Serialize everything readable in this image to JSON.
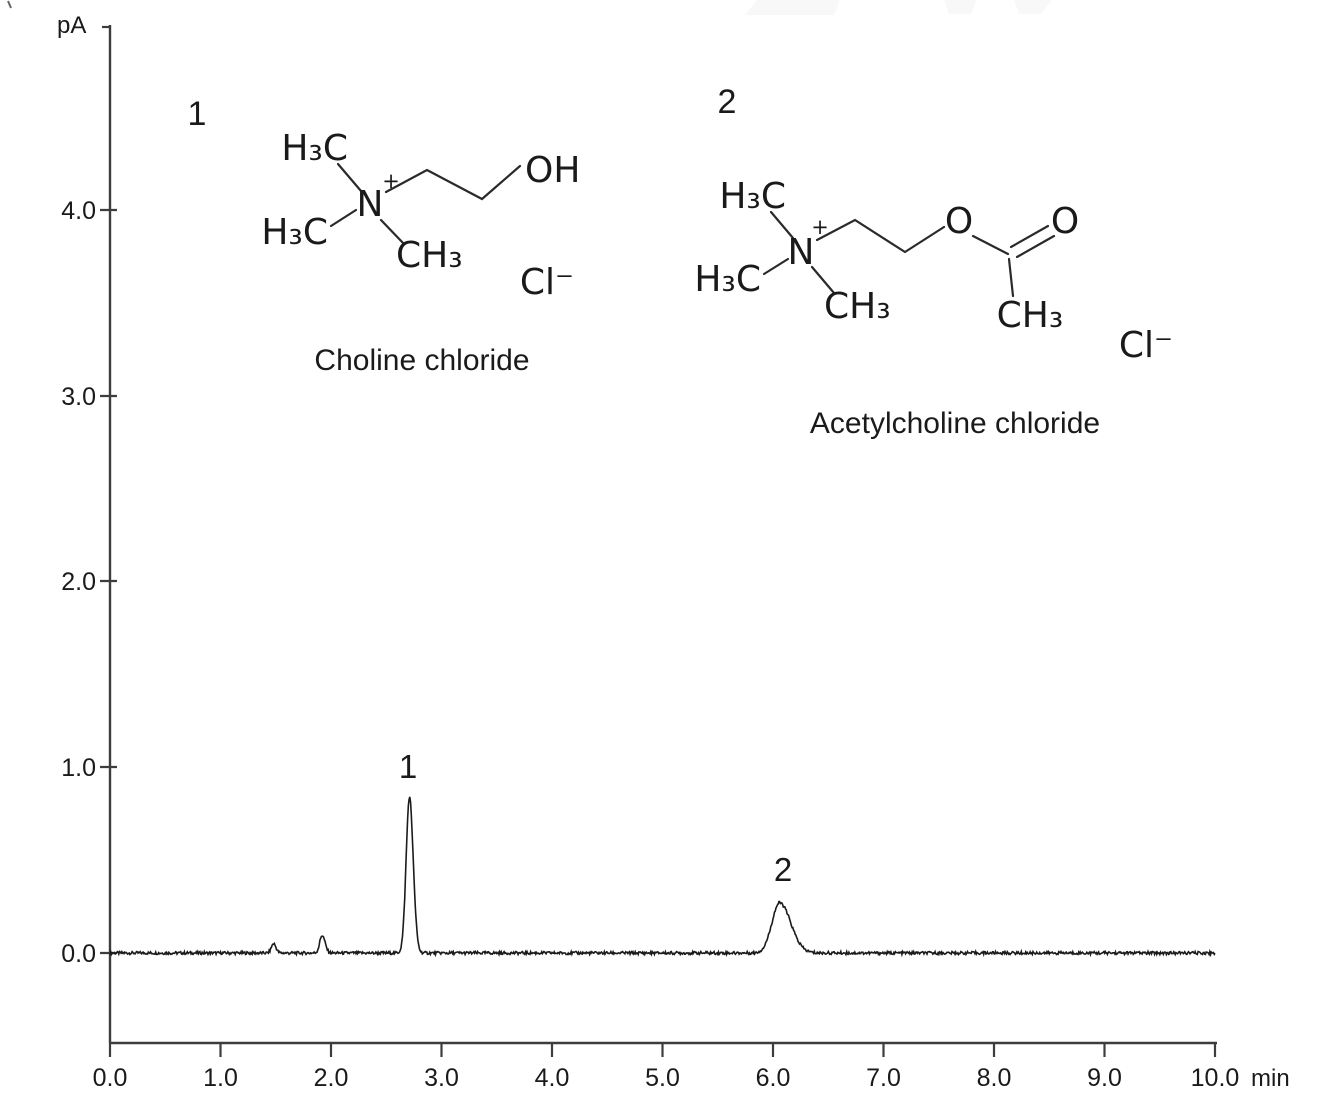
{
  "figure": {
    "y_axis_unit": "pA",
    "x_axis_unit": "min",
    "y_ticks": [
      "4.0",
      "3.0",
      "2.0",
      "1.0",
      "0.0"
    ],
    "x_ticks": [
      "0.0",
      "1.0",
      "2.0",
      "3.0",
      "4.0",
      "5.0",
      "6.0",
      "7.0",
      "8.0",
      "9.0",
      "10.0"
    ]
  },
  "chart_data": {
    "type": "line",
    "title": "",
    "xlabel": "min",
    "ylabel": "pA",
    "xlim": [
      0,
      10
    ],
    "ylim": [
      -0.45,
      4.95
    ],
    "x_tick_values": [
      0,
      1,
      2,
      3,
      4,
      5,
      6,
      7,
      8,
      9,
      10
    ],
    "y_tick_values": [
      0,
      1,
      2,
      3,
      4
    ],
    "grid": false,
    "legend": false,
    "baseline": 0.0,
    "noise_amplitude": 0.008,
    "peaks": [
      {
        "label": "",
        "compound": "",
        "rt": 1.48,
        "height": 0.05,
        "sigma_left": 0.02,
        "sigma_right": 0.022
      },
      {
        "label": "",
        "compound": "",
        "rt": 1.92,
        "height": 0.095,
        "sigma_left": 0.022,
        "sigma_right": 0.026
      },
      {
        "label": "1",
        "compound": "Choline chloride",
        "rt": 2.71,
        "height": 0.84,
        "sigma_left": 0.03,
        "sigma_right": 0.034
      },
      {
        "label": "2",
        "compound": "Acetylcholine chloride",
        "rt": 6.06,
        "height": 0.27,
        "sigma_left": 0.07,
        "sigma_right": 0.1
      }
    ]
  },
  "structures": {
    "s1": {
      "number": "1",
      "name": "Choline chloride",
      "atoms": {
        "methyl_top": "H₃C",
        "methyl_left": "H₃C",
        "methyl_bottom": "CH₃",
        "nitrogen": "N",
        "charge": "+",
        "hydroxyl": "OH",
        "counter_ion": "Cl⁻"
      }
    },
    "s2": {
      "number": "2",
      "name": "Acetylcholine chloride",
      "atoms": {
        "methyl_top": "H₃C",
        "methyl_left": "H₃C",
        "methyl_bottom": "CH₃",
        "nitrogen": "N",
        "charge": "+",
        "ester_oxygen": "O",
        "carbonyl_oxygen": "O",
        "acetyl_methyl": "CH₃",
        "counter_ion": "Cl⁻"
      }
    }
  }
}
